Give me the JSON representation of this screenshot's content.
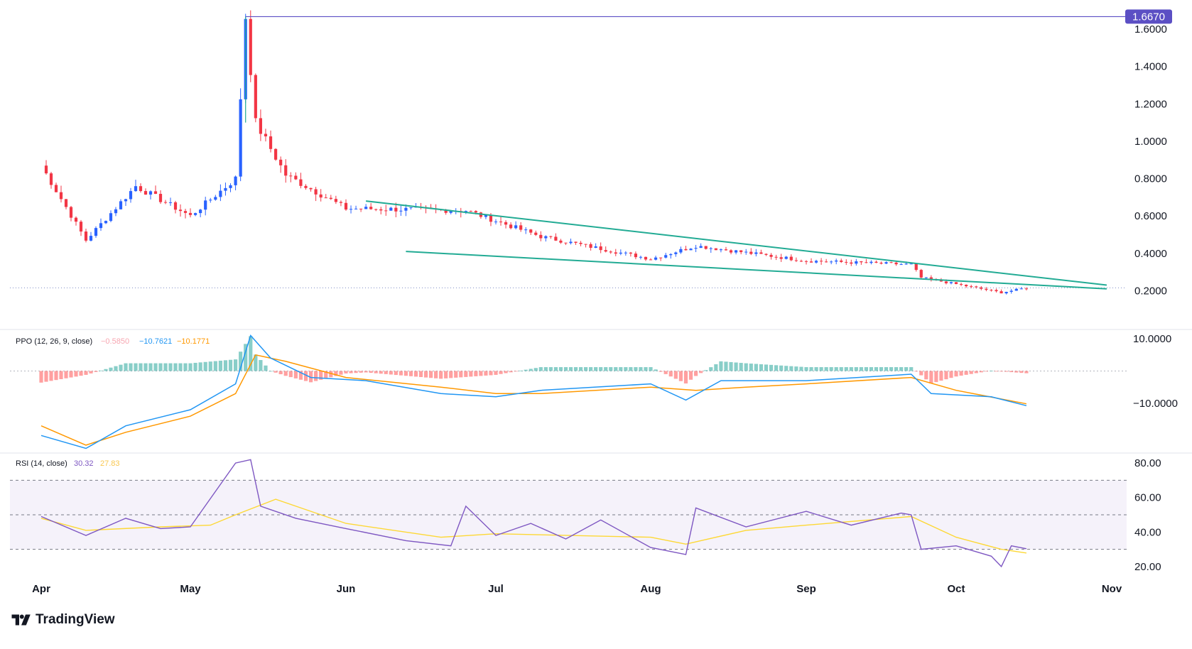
{
  "brand": {
    "name": "TradingView",
    "logo_icon": "tradingview-logo-icon"
  },
  "colors": {
    "up": "#2962ff",
    "down": "#f23645",
    "trend": "#22ab94",
    "ppo_line": "#2196f3",
    "ppo_signal": "#ff9800",
    "hist_pos": "#26a69a",
    "hist_neg": "#ff5252",
    "rsi": "#7e57c2",
    "rsi_ma": "#fdd835",
    "high_line": "#5b4fc4"
  },
  "chart_data": [
    {
      "type": "candlestick",
      "panel": "price",
      "x_axis": [
        "Apr",
        "May",
        "Jun",
        "Jul",
        "Aug",
        "Sep",
        "Oct",
        "Nov"
      ],
      "y_axis_ticks": [
        "1.6000",
        "1.4000",
        "1.2000",
        "1.0000",
        "0.8000",
        "0.6000",
        "0.4000",
        "0.2000"
      ],
      "ylim": [
        0.0,
        1.68
      ],
      "high_marker": {
        "label": "1.6670",
        "value": 1.667
      },
      "current_price_line": 0.215,
      "trendlines": [
        {
          "name": "upper",
          "from": [
            "Jun 5",
            0.68
          ],
          "to": [
            "Oct 31",
            0.23
          ]
        },
        {
          "name": "lower",
          "from": [
            "Jun 13",
            0.41
          ],
          "to": [
            "Oct 31",
            0.21
          ]
        }
      ],
      "key_points": [
        {
          "date": "Apr 1",
          "close": 0.87
        },
        {
          "date": "Apr 10",
          "close": 0.47
        },
        {
          "date": "Apr 20",
          "close": 0.76
        },
        {
          "date": "May 1",
          "close": 0.6
        },
        {
          "date": "May 10",
          "close": 0.8
        },
        {
          "date": "May 12",
          "close": 1.667,
          "note": "high"
        },
        {
          "date": "May 14",
          "close": 1.1
        },
        {
          "date": "May 20",
          "close": 0.82
        },
        {
          "date": "Jun 1",
          "close": 0.64
        },
        {
          "date": "Jun 25",
          "close": 0.63
        },
        {
          "date": "Jul 10",
          "close": 0.49
        },
        {
          "date": "Aug 1",
          "close": 0.37
        },
        {
          "date": "Aug 10",
          "close": 0.44
        },
        {
          "date": "Sep 1",
          "close": 0.36
        },
        {
          "date": "Sep 22",
          "close": 0.34
        },
        {
          "date": "Sep 24",
          "close": 0.27
        },
        {
          "date": "Oct 10",
          "close": 0.19
        },
        {
          "date": "Oct 15",
          "close": 0.215
        }
      ]
    },
    {
      "type": "line",
      "panel": "ppo",
      "legend": {
        "title": "PPO (12, 26, 9, close)",
        "hist": "−0.5850",
        "ppo": "−10.7621",
        "signal": "−10.1771"
      },
      "y_axis_ticks": [
        "10.0000",
        "−10.0000"
      ],
      "ylim": [
        -25,
        12
      ],
      "series": [
        {
          "name": "ppo",
          "points": [
            [
              "Apr 1",
              -20
            ],
            [
              "Apr 10",
              -24
            ],
            [
              "Apr 18",
              -17
            ],
            [
              "May 1",
              -12
            ],
            [
              "May 10",
              -4
            ],
            [
              "May 13",
              11
            ],
            [
              "May 17",
              4
            ],
            [
              "May 25",
              -2
            ],
            [
              "Jun 5",
              -3
            ],
            [
              "Jun 20",
              -7
            ],
            [
              "Jul 1",
              -8
            ],
            [
              "Jul 10",
              -6
            ],
            [
              "Aug 1",
              -4
            ],
            [
              "Aug 8",
              -9
            ],
            [
              "Aug 15",
              -3
            ],
            [
              "Sep 1",
              -3
            ],
            [
              "Sep 22",
              -1
            ],
            [
              "Sep 26",
              -7
            ],
            [
              "Oct 8",
              -8
            ],
            [
              "Oct 15",
              -10.76
            ]
          ]
        },
        {
          "name": "signal",
          "points": [
            [
              "Apr 1",
              -17
            ],
            [
              "Apr 10",
              -23
            ],
            [
              "Apr 18",
              -19
            ],
            [
              "May 1",
              -14
            ],
            [
              "May 10",
              -7
            ],
            [
              "May 14",
              5
            ],
            [
              "May 20",
              3
            ],
            [
              "Jun 1",
              -2
            ],
            [
              "Jun 20",
              -5
            ],
            [
              "Jul 1",
              -7
            ],
            [
              "Jul 10",
              -7
            ],
            [
              "Aug 1",
              -5
            ],
            [
              "Aug 10",
              -6
            ],
            [
              "Aug 20",
              -5
            ],
            [
              "Sep 1",
              -4
            ],
            [
              "Sep 22",
              -2
            ],
            [
              "Oct 1",
              -6
            ],
            [
              "Oct 15",
              -10.18
            ]
          ]
        }
      ]
    },
    {
      "type": "line",
      "panel": "rsi",
      "legend": {
        "title": "RSI (14, close)",
        "rsi": "30.32",
        "ma": "27.83"
      },
      "y_axis_ticks": [
        "80.00",
        "60.00",
        "40.00",
        "20.00"
      ],
      "ylim": [
        15,
        85
      ],
      "bands": [
        70,
        50,
        30
      ],
      "series": [
        {
          "name": "rsi",
          "points": [
            [
              "Apr 1",
              49
            ],
            [
              "Apr 10",
              38
            ],
            [
              "Apr 18",
              48
            ],
            [
              "Apr 25",
              42
            ],
            [
              "May 1",
              43
            ],
            [
              "May 10",
              80
            ],
            [
              "May 13",
              82
            ],
            [
              "May 15",
              55
            ],
            [
              "May 22",
              48
            ],
            [
              "Jun 1",
              42
            ],
            [
              "Jun 13",
              35
            ],
            [
              "Jun 22",
              32
            ],
            [
              "Jun 25",
              55
            ],
            [
              "Jul 1",
              38
            ],
            [
              "Jul 8",
              45
            ],
            [
              "Jul 15",
              36
            ],
            [
              "Jul 22",
              47
            ],
            [
              "Aug 1",
              31
            ],
            [
              "Aug 8",
              27
            ],
            [
              "Aug 10",
              54
            ],
            [
              "Aug 20",
              43
            ],
            [
              "Sep 1",
              52
            ],
            [
              "Sep 10",
              44
            ],
            [
              "Sep 20",
              51
            ],
            [
              "Sep 22",
              50
            ],
            [
              "Sep 24",
              30
            ],
            [
              "Oct 1",
              32
            ],
            [
              "Oct 8",
              26
            ],
            [
              "Oct 10",
              20
            ],
            [
              "Oct 12",
              32
            ],
            [
              "Oct 15",
              30.32
            ]
          ]
        },
        {
          "name": "ma",
          "points": [
            [
              "Apr 1",
              48
            ],
            [
              "Apr 10",
              41
            ],
            [
              "Apr 25",
              43
            ],
            [
              "May 5",
              44
            ],
            [
              "May 10",
              50
            ],
            [
              "May 18",
              59
            ],
            [
              "Jun 1",
              45
            ],
            [
              "Jun 20",
              37
            ],
            [
              "Jul 1",
              39
            ],
            [
              "Aug 1",
              37
            ],
            [
              "Aug 8",
              33
            ],
            [
              "Aug 20",
              41
            ],
            [
              "Sep 1",
              44
            ],
            [
              "Sep 22",
              49
            ],
            [
              "Oct 1",
              37
            ],
            [
              "Oct 10",
              30
            ],
            [
              "Oct 15",
              27.83
            ]
          ]
        }
      ]
    }
  ]
}
